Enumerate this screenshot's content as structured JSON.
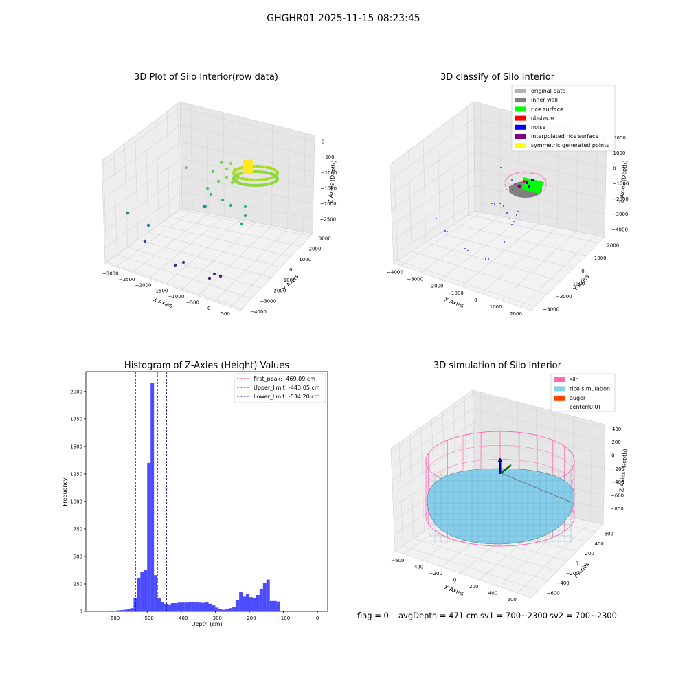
{
  "suptitle": "GHGHR01 2025-11-15 08:23:45",
  "panels": {
    "raw": {
      "title": "3D Plot of Silo Interior(row data)",
      "xlabel": "X Axies",
      "ylabel": "Y Axies",
      "zlabel": "Z Axies (Depth)",
      "xticks": [
        "−3000",
        "−2500",
        "−2000",
        "−1500",
        "−1000",
        "−500",
        "0",
        "500"
      ],
      "yticks": [
        "−4000",
        "−3000",
        "−2000",
        "−1000",
        "0",
        "1000",
        "2000",
        "3000"
      ],
      "zticks": [
        "0",
        "−500",
        "−1000",
        "−1500",
        "−2000",
        "−2500"
      ]
    },
    "classify": {
      "title": "3D classify of Silo Interior",
      "xlabel": "X Axies",
      "ylabel": "Y Axies",
      "zlabel": "Z Axies (Depth)",
      "xticks": [
        "−4000",
        "−3000",
        "−2000",
        "−1000",
        "0",
        "1000",
        "2000"
      ],
      "yticks": [
        "−3000",
        "−2000",
        "−1000",
        "0",
        "1000",
        "2000"
      ],
      "zticks": [
        "2000",
        "1000",
        "0",
        "−1000",
        "−2000",
        "−3000",
        "−4000"
      ],
      "legend": [
        {
          "label": "original data",
          "color": "#b3b3b3"
        },
        {
          "label": "inner wall",
          "color": "#808080"
        },
        {
          "label": "rice surface",
          "color": "#00ff00"
        },
        {
          "label": "obstacle",
          "color": "#ff0000"
        },
        {
          "label": "noise",
          "color": "#0000ff"
        },
        {
          "label": "interpolated rice surface",
          "color": "#800080"
        },
        {
          "label": "symmetric generated points",
          "color": "#ffff00"
        }
      ]
    },
    "simulation": {
      "title": "3D simulation of Silo Interior",
      "xlabel": "X Axies",
      "ylabel": "Y Axies",
      "zlabel": "Z Axies (Depth)",
      "xticks": [
        "−600",
        "−400",
        "−200",
        "0",
        "200",
        "400",
        "600"
      ],
      "yticks": [
        "−600",
        "−400",
        "−200",
        "0",
        "200",
        "400",
        "600"
      ],
      "zticks": [
        "400",
        "200",
        "0",
        "−200",
        "−400",
        "−600",
        "−800"
      ],
      "legend": [
        {
          "label": "silo",
          "color": "#ff69b4"
        },
        {
          "label": "rice simulation",
          "color": "#87ceeb"
        },
        {
          "label": "auger",
          "color": "#ff4500"
        },
        {
          "label": "center(0,0)",
          "color": "none"
        }
      ]
    }
  },
  "chart_data": [
    {
      "type": "scatter",
      "title": "3D Plot of Silo Interior(row data)",
      "xlabel": "X Axies",
      "ylabel": "Y Axies",
      "zlabel": "Z Axies (Depth)",
      "xlim": [
        -3200,
        700
      ],
      "ylim": [
        -4000,
        3000
      ],
      "zlim": [
        -2800,
        0
      ],
      "colormap": "viridis"
    },
    {
      "type": "scatter",
      "title": "3D classify of Silo Interior",
      "xlabel": "X Axies",
      "ylabel": "Y Axies",
      "zlabel": "Z Axies (Depth)",
      "series": [
        "original data",
        "inner wall",
        "rice surface",
        "obstacle",
        "noise",
        "interpolated rice surface",
        "symmetric generated points"
      ]
    },
    {
      "type": "bar",
      "title": "Histogram of Z-Axies (Height) Values",
      "xlabel": "Depth (cm)",
      "ylabel": "Frequency",
      "xlim": [
        -680,
        30
      ],
      "ylim": [
        0,
        2180
      ],
      "bin_width": 10,
      "xticks": [
        "−600",
        "−500",
        "−400",
        "−300",
        "−200",
        "−100",
        "0"
      ],
      "yticks": [
        "0",
        "250",
        "500",
        "750",
        "1000",
        "1250",
        "1500",
        "1750",
        "2000"
      ],
      "bins": [
        {
          "x0": -640,
          "count": 3
        },
        {
          "x0": -630,
          "count": 4
        },
        {
          "x0": -620,
          "count": 5
        },
        {
          "x0": -610,
          "count": 7
        },
        {
          "x0": -600,
          "count": 6
        },
        {
          "x0": -590,
          "count": 10
        },
        {
          "x0": -580,
          "count": 12
        },
        {
          "x0": -570,
          "count": 15
        },
        {
          "x0": -560,
          "count": 20
        },
        {
          "x0": -550,
          "count": 30
        },
        {
          "x0": -540,
          "count": 120
        },
        {
          "x0": -530,
          "count": 300
        },
        {
          "x0": -520,
          "count": 360
        },
        {
          "x0": -510,
          "count": 380
        },
        {
          "x0": -500,
          "count": 1350
        },
        {
          "x0": -490,
          "count": 2080
        },
        {
          "x0": -480,
          "count": 330
        },
        {
          "x0": -470,
          "count": 120
        },
        {
          "x0": -460,
          "count": 85
        },
        {
          "x0": -450,
          "count": 70
        },
        {
          "x0": -440,
          "count": 65
        },
        {
          "x0": -430,
          "count": 75
        },
        {
          "x0": -420,
          "count": 75
        },
        {
          "x0": -410,
          "count": 80
        },
        {
          "x0": -400,
          "count": 80
        },
        {
          "x0": -390,
          "count": 80
        },
        {
          "x0": -380,
          "count": 82
        },
        {
          "x0": -370,
          "count": 85
        },
        {
          "x0": -360,
          "count": 85
        },
        {
          "x0": -350,
          "count": 80
        },
        {
          "x0": -340,
          "count": 78
        },
        {
          "x0": -330,
          "count": 82
        },
        {
          "x0": -320,
          "count": 70
        },
        {
          "x0": -310,
          "count": 55
        },
        {
          "x0": -300,
          "count": 35
        },
        {
          "x0": -290,
          "count": 20
        },
        {
          "x0": -280,
          "count": 15
        },
        {
          "x0": -270,
          "count": 25
        },
        {
          "x0": -260,
          "count": 30
        },
        {
          "x0": -250,
          "count": 40
        },
        {
          "x0": -240,
          "count": 100
        },
        {
          "x0": -230,
          "count": 180
        },
        {
          "x0": -220,
          "count": 135
        },
        {
          "x0": -210,
          "count": 160
        },
        {
          "x0": -200,
          "count": 130
        },
        {
          "x0": -190,
          "count": 125
        },
        {
          "x0": -180,
          "count": 150
        },
        {
          "x0": -170,
          "count": 200
        },
        {
          "x0": -160,
          "count": 260
        },
        {
          "x0": -150,
          "count": 290
        },
        {
          "x0": -140,
          "count": 95
        },
        {
          "x0": -130,
          "count": 95
        },
        {
          "x0": -120,
          "count": 90
        }
      ],
      "lines": [
        {
          "label": "first_peak: -469.09 cm",
          "x": -469.09,
          "color": "#ff0000"
        },
        {
          "label": "Upper_limit: -443.05 cm",
          "x": -443.05,
          "color": "#00008b"
        },
        {
          "label": "Lower_limit: -534.20 cm",
          "x": -534.2,
          "color": "#00008b"
        }
      ]
    },
    {
      "type": "scatter",
      "title": "3D simulation of Silo Interior",
      "xlabel": "X Axies",
      "ylabel": "Y Axies",
      "zlabel": "Z Axies (Depth)",
      "series": [
        "silo",
        "rice simulation",
        "auger",
        "center(0,0)"
      ]
    }
  ],
  "status": {
    "flag": "flag = 0",
    "avg": "avgDepth = 471 cm",
    "sv1": "sv1 = 700~2300",
    "sv2": "sv2 = 700~2300"
  }
}
